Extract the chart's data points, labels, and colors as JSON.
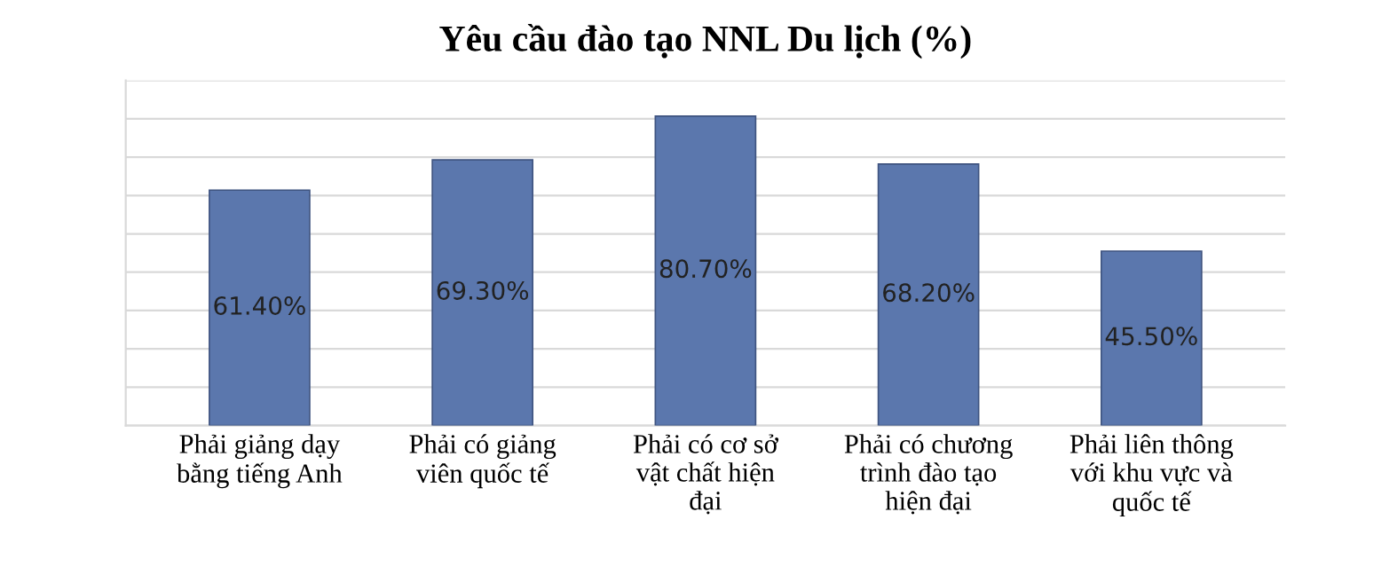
{
  "chart_data": {
    "type": "bar",
    "title": "Yêu cầu đào tạo NNL Du lịch (%)",
    "categories": [
      "Phải giảng dạy\nbằng tiếng Anh",
      "Phải có giảng\nviên quốc tế",
      "Phải có cơ sở\nvật chất hiện\nđại",
      "Phải có chương\ntrình đào tạo\nhiện đại",
      "Phải liên thông\nvới khu vực và\nquốc tế"
    ],
    "values": [
      61.4,
      69.3,
      80.7,
      68.2,
      45.5
    ],
    "value_labels": [
      "61.40%",
      "69.30%",
      "80.70%",
      "68.20%",
      "45.50%"
    ],
    "color": "#5b77ad",
    "ylim": [
      0,
      90
    ],
    "yticks": [
      {
        "value": 0,
        "label": null
      },
      {
        "value": 10,
        "label": null
      },
      {
        "value": 20,
        "label": null
      },
      {
        "value": 30,
        "label": null
      },
      {
        "value": 40,
        "label": null
      },
      {
        "value": 50,
        "label": null
      },
      {
        "value": 60,
        "label": null
      },
      {
        "value": 70,
        "label": null
      },
      {
        "value": 80,
        "label": null
      },
      {
        "value": 90,
        "label": null
      }
    ],
    "grid": "y",
    "tick_labels": "x"
  }
}
